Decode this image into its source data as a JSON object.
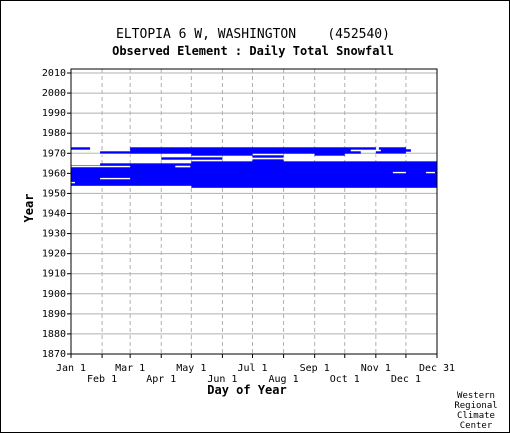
{
  "chart_data": {
    "type": "bar",
    "title": "ELTOPIA 6 W, WASHINGTON    (452540)",
    "subtitle": "Observed Element : Daily Total Snowfall",
    "xlabel": "Day of Year",
    "ylabel": "Year",
    "xlim": [
      1,
      366
    ],
    "ylim": [
      1870,
      2012
    ],
    "x_ticks_upper": [
      {
        "day": 1,
        "label": "Jan 1"
      },
      {
        "day": 60,
        "label": "Mar 1"
      },
      {
        "day": 121,
        "label": "May 1"
      },
      {
        "day": 182,
        "label": "Jul 1"
      },
      {
        "day": 244,
        "label": "Sep 1"
      },
      {
        "day": 305,
        "label": "Nov 1"
      },
      {
        "day": 366,
        "label": "Dec 31"
      }
    ],
    "x_ticks_lower": [
      {
        "day": 32,
        "label": "Feb 1"
      },
      {
        "day": 91,
        "label": "Apr 1"
      },
      {
        "day": 152,
        "label": "Jun 1"
      },
      {
        "day": 213,
        "label": "Aug 1"
      },
      {
        "day": 274,
        "label": "Oct 1"
      },
      {
        "day": 335,
        "label": "Dec 1"
      }
    ],
    "y_ticks": [
      1870,
      1880,
      1890,
      1900,
      1910,
      1920,
      1930,
      1940,
      1950,
      1960,
      1970,
      1980,
      1990,
      2000,
      2010
    ],
    "color": "#0000ff",
    "series": [
      {
        "name": "",
        "records": [
          {
            "year": 1972,
            "start": 1,
            "end": 20
          },
          {
            "year": 1972,
            "start": 60,
            "end": 305
          },
          {
            "year": 1972,
            "start": 308,
            "end": 335
          },
          {
            "year": 1971,
            "start": 60,
            "end": 280
          },
          {
            "year": 1971,
            "start": 310,
            "end": 340
          },
          {
            "year": 1970,
            "start": 30,
            "end": 290
          },
          {
            "year": 1970,
            "start": 305,
            "end": 335
          },
          {
            "year": 1969,
            "start": 121,
            "end": 182
          },
          {
            "year": 1969,
            "start": 244,
            "end": 274
          },
          {
            "year": 1968,
            "start": 182,
            "end": 213
          },
          {
            "year": 1967,
            "start": 91,
            "end": 152
          },
          {
            "year": 1966,
            "start": 182,
            "end": 213
          },
          {
            "year": 1965,
            "start": 121,
            "end": 366
          },
          {
            "year": 1964,
            "start": 30,
            "end": 366
          },
          {
            "year": 1963,
            "start": 1,
            "end": 105
          },
          {
            "year": 1963,
            "start": 120,
            "end": 366
          },
          {
            "year": 1962,
            "start": 1,
            "end": 366
          },
          {
            "year": 1961,
            "start": 1,
            "end": 366
          },
          {
            "year": 1960,
            "start": 1,
            "end": 366
          },
          {
            "year": 1959,
            "start": 1,
            "end": 366
          },
          {
            "year": 1958,
            "start": 1,
            "end": 366
          },
          {
            "year": 1957,
            "start": 1,
            "end": 366
          },
          {
            "year": 1956,
            "start": 1,
            "end": 366
          },
          {
            "year": 1955,
            "start": 1,
            "end": 366
          },
          {
            "year": 1954,
            "start": 1,
            "end": 366
          },
          {
            "year": 1953,
            "start": 121,
            "end": 366
          }
        ]
      }
    ],
    "gaps": [
      {
        "year": 1969,
        "start": 1,
        "end": 60
      },
      {
        "year": 1969,
        "start": 305,
        "end": 366
      },
      {
        "year": 1963,
        "start": 1,
        "end": 60
      },
      {
        "year": 1960,
        "start": 322,
        "end": 335
      },
      {
        "year": 1960,
        "start": 355,
        "end": 364
      },
      {
        "year": 1957,
        "start": 30,
        "end": 60
      },
      {
        "year": 1955,
        "start": 1,
        "end": 5
      }
    ],
    "grid": true,
    "legend": "none"
  },
  "credit": [
    "Western",
    "Regional",
    "Climate",
    "Center"
  ]
}
